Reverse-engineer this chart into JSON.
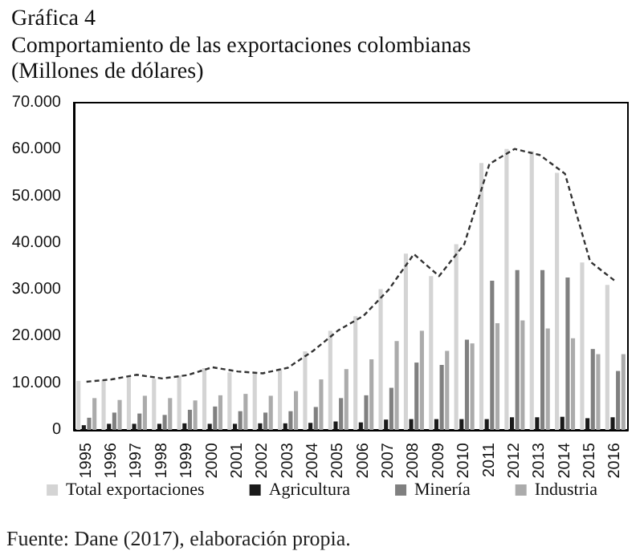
{
  "chart_data": {
    "type": "bar",
    "title": "Gráfica 4",
    "subtitle": "Comportamiento de las exportaciones colombianas (Millones de dólares)",
    "categories": [
      "1995",
      "1996",
      "1997",
      "1998",
      "1999",
      "2000",
      "2001",
      "2002",
      "2003",
      "2004",
      "2005",
      "2006",
      "2007",
      "2008",
      "2009",
      "2010",
      "2011",
      "2012",
      "2013",
      "2014",
      "2015",
      "2016"
    ],
    "series": [
      {
        "name": "Total exportaciones",
        "color": "#d4d4d4",
        "values": [
          10500,
          10700,
          11500,
          10900,
          11600,
          13200,
          12300,
          12000,
          13100,
          16800,
          21200,
          24300,
          30100,
          37700,
          32900,
          39700,
          57100,
          60100,
          59600,
          55000,
          35800,
          31000
        ]
      },
      {
        "name": "Agricultura",
        "color": "#1a1a1a",
        "values": [
          1000,
          1300,
          1300,
          1300,
          1400,
          1300,
          1300,
          1400,
          1400,
          1500,
          1800,
          1600,
          2200,
          2300,
          2300,
          2300,
          2300,
          2700,
          2700,
          2800,
          2500,
          2700
        ]
      },
      {
        "name": "Minería",
        "color": "#808080",
        "values": [
          2600,
          3700,
          3500,
          3200,
          4300,
          5000,
          4000,
          3700,
          4000,
          4900,
          6800,
          7400,
          9000,
          14400,
          13900,
          19300,
          31900,
          34200,
          34200,
          32600,
          17300,
          12600
        ]
      },
      {
        "name": "Industria",
        "color": "#ababab",
        "values": [
          6800,
          6400,
          7300,
          6800,
          6300,
          7400,
          7700,
          7300,
          8300,
          10800,
          13000,
          15100,
          19000,
          21200,
          16900,
          18500,
          22800,
          23400,
          21700,
          19600,
          16200,
          16200
        ]
      },
      {
        "type": "line",
        "color": "#333333",
        "line_style": "dashed",
        "marker": "none",
        "values": [
          10300,
          10800,
          11800,
          11000,
          11700,
          13400,
          12500,
          12100,
          13300,
          16900,
          21300,
          24400,
          30000,
          37600,
          32900,
          39700,
          56900,
          60100,
          58800,
          54800,
          36000,
          31800
        ]
      }
    ],
    "ylim": [
      0,
      70000
    ],
    "yticks": [
      {
        "value": 0,
        "label": "0"
      },
      {
        "value": 10000,
        "label": "10.000"
      },
      {
        "value": 20000,
        "label": "20.000"
      },
      {
        "value": 30000,
        "label": "30.000"
      },
      {
        "value": 40000,
        "label": "40.000"
      },
      {
        "value": 50000,
        "label": "50.000"
      },
      {
        "value": 60000,
        "label": "60.000"
      },
      {
        "value": 70000,
        "label": "70.000"
      }
    ],
    "grid": false,
    "legend": "bottom",
    "annotations": [
      "Fuente: Dane (2017), elaboración propia."
    ]
  }
}
